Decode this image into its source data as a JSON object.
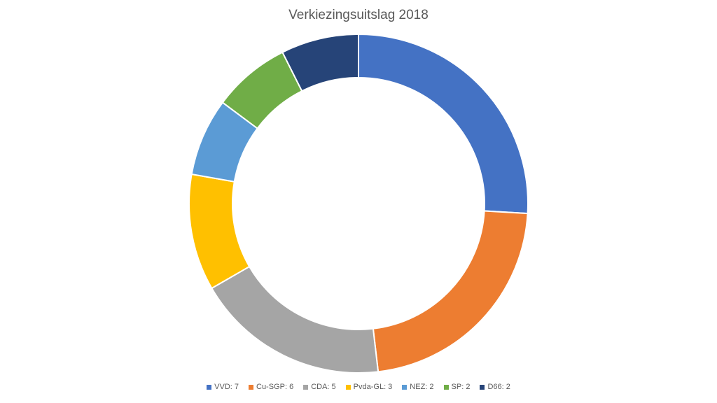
{
  "chart_data": {
    "type": "pie",
    "variant": "donut",
    "title": "Verkiezingsuitslag 2018",
    "legend_position": "bottom",
    "series": [
      {
        "name": "VVD",
        "label": "VVD: 7",
        "value": 7,
        "color": "#4472C4"
      },
      {
        "name": "Cu-SGP",
        "label": "Cu-SGP: 6",
        "value": 6,
        "color": "#ED7D31"
      },
      {
        "name": "CDA",
        "label": "CDA: 5",
        "value": 5,
        "color": "#A5A5A5"
      },
      {
        "name": "Pvda-GL",
        "label": "Pvda-GL: 3",
        "value": 3,
        "color": "#FFC000"
      },
      {
        "name": "NEZ",
        "label": "NEZ: 2",
        "value": 2,
        "color": "#5B9BD5"
      },
      {
        "name": "SP",
        "label": "SP: 2",
        "value": 2,
        "color": "#70AD47"
      },
      {
        "name": "D66",
        "label": "D66: 2",
        "value": 2,
        "color": "#264478"
      }
    ]
  }
}
